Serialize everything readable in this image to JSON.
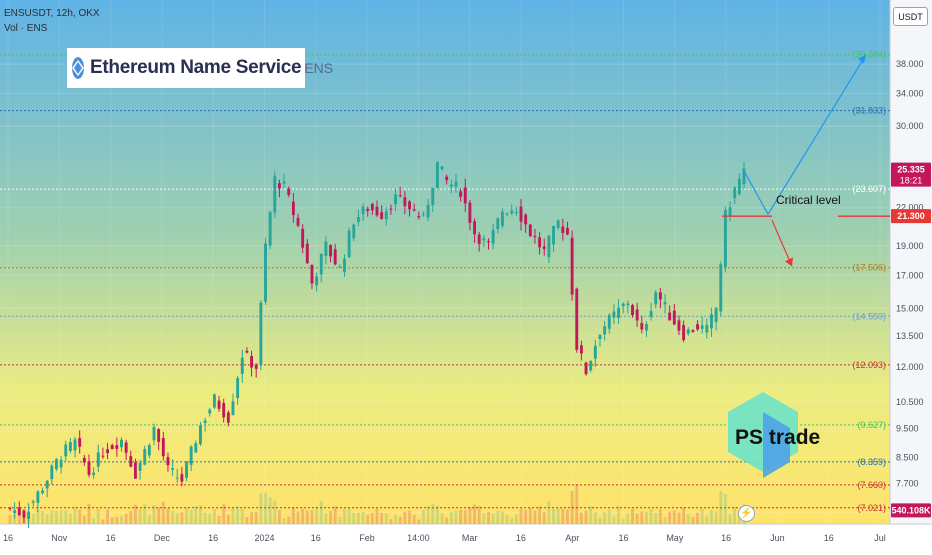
{
  "header": {
    "symbol_line": "ENSUSDT, 12h, OKX",
    "volume_label": "Vol · ENS"
  },
  "logo": {
    "name": "Ethereum Name Service",
    "ticker": "ENS",
    "icon": "ens-logo-icon"
  },
  "watermark": {
    "brand": "PS trade",
    "icon": "hexagon-logo-icon"
  },
  "currency_button": "USDT",
  "annotation": {
    "critical_level": "Critical level"
  },
  "colors": {
    "bull": "#26a69a",
    "bear": "#c2185b",
    "critical": "#e53935",
    "projection_up": "#2196f3",
    "projection_down": "#e53935",
    "bg_top": "#5fb3e6",
    "bg_bottom": "#ffe66b"
  },
  "chart_data": {
    "type": "candlestick",
    "axis": {
      "scale": "log",
      "ylim": [
        6.6,
        48.5
      ],
      "tick_labels": [
        "38.000",
        "34.000",
        "30.000",
        "22.000",
        "19.000",
        "17.000",
        "15.000",
        "13.500",
        "12.000",
        "10.500",
        "9.500",
        "8.500",
        "7.700",
        "6.900"
      ],
      "x_labels": [
        "16",
        "Nov",
        "16",
        "Dec",
        "16",
        "2024",
        "16",
        "Feb",
        "14:00",
        "Mar",
        "16",
        "Apr",
        "16",
        "May",
        "16",
        "Jun",
        "16",
        "Jul"
      ]
    },
    "price_levels": [
      {
        "label": "(39.384)",
        "value": 39.384,
        "color": "#43c463"
      },
      {
        "label": "(31.833)",
        "value": 31.833,
        "color": "#2b6cb0"
      },
      {
        "label": "(23.607)",
        "value": 23.607,
        "color": "#ffffff"
      },
      {
        "label": "(17.506)",
        "value": 17.506,
        "color": "#b7791f"
      },
      {
        "label": "(14.550)",
        "value": 14.55,
        "color": "#6b9bd1"
      },
      {
        "label": "(12.093)",
        "value": 12.093,
        "color": "#c53030"
      },
      {
        "label": "(9.627)",
        "value": 9.627,
        "color": "#43c463"
      },
      {
        "label": "(8.359)",
        "value": 8.359,
        "color": "#2b6cb0"
      },
      {
        "label": "(7.660)",
        "value": 7.66,
        "color": "#c53030"
      },
      {
        "label": "(7.021)",
        "value": 7.021,
        "color": "#c53030"
      }
    ],
    "badges": [
      {
        "label": "25.335",
        "sub": "18:21",
        "value": 25.335,
        "color": "#c2185b"
      },
      {
        "label": "21.300",
        "value": 21.3,
        "color": "#e53935"
      },
      {
        "label": "540.108K",
        "value": 6.95,
        "color": "#c2185b"
      }
    ],
    "critical_value": 21.3,
    "projection_up_target": 39.384,
    "projection_down_target": 17.6,
    "keypoints": [
      [
        0,
        7.0
      ],
      [
        3,
        6.85
      ],
      [
        7,
        7.6
      ],
      [
        11,
        8.6
      ],
      [
        14,
        9.0
      ],
      [
        17,
        8.0
      ],
      [
        20,
        8.7
      ],
      [
        24,
        9.1
      ],
      [
        27,
        8.0
      ],
      [
        31,
        9.5
      ],
      [
        34,
        8.1
      ],
      [
        37,
        7.8
      ],
      [
        41,
        9.6
      ],
      [
        44,
        10.6
      ],
      [
        47,
        9.9
      ],
      [
        50,
        12.6
      ],
      [
        53,
        12.0
      ],
      [
        55,
        19.0
      ],
      [
        57,
        24.5
      ],
      [
        59,
        23.8
      ],
      [
        62,
        20.5
      ],
      [
        65,
        16.5
      ],
      [
        68,
        19.0
      ],
      [
        71,
        17.4
      ],
      [
        74,
        21.0
      ],
      [
        77,
        22.0
      ],
      [
        80,
        21.5
      ],
      [
        83,
        22.8
      ],
      [
        86,
        22.0
      ],
      [
        89,
        21.0
      ],
      [
        92,
        26.0
      ],
      [
        94,
        24.3
      ],
      [
        97,
        23.5
      ],
      [
        100,
        20.0
      ],
      [
        103,
        19.0
      ],
      [
        106,
        21.8
      ],
      [
        109,
        22.0
      ],
      [
        112,
        20.0
      ],
      [
        115,
        18.6
      ],
      [
        118,
        20.8
      ],
      [
        120,
        19.9
      ],
      [
        122,
        13.0
      ],
      [
        124,
        11.8
      ],
      [
        127,
        13.8
      ],
      [
        130,
        14.6
      ],
      [
        133,
        15.4
      ],
      [
        136,
        13.6
      ],
      [
        139,
        16.0
      ],
      [
        142,
        14.6
      ],
      [
        145,
        13.6
      ],
      [
        148,
        14.0
      ],
      [
        150,
        13.8
      ],
      [
        152,
        15.0
      ],
      [
        154,
        21.3
      ],
      [
        156,
        23.6
      ],
      [
        158,
        25.3
      ]
    ]
  }
}
